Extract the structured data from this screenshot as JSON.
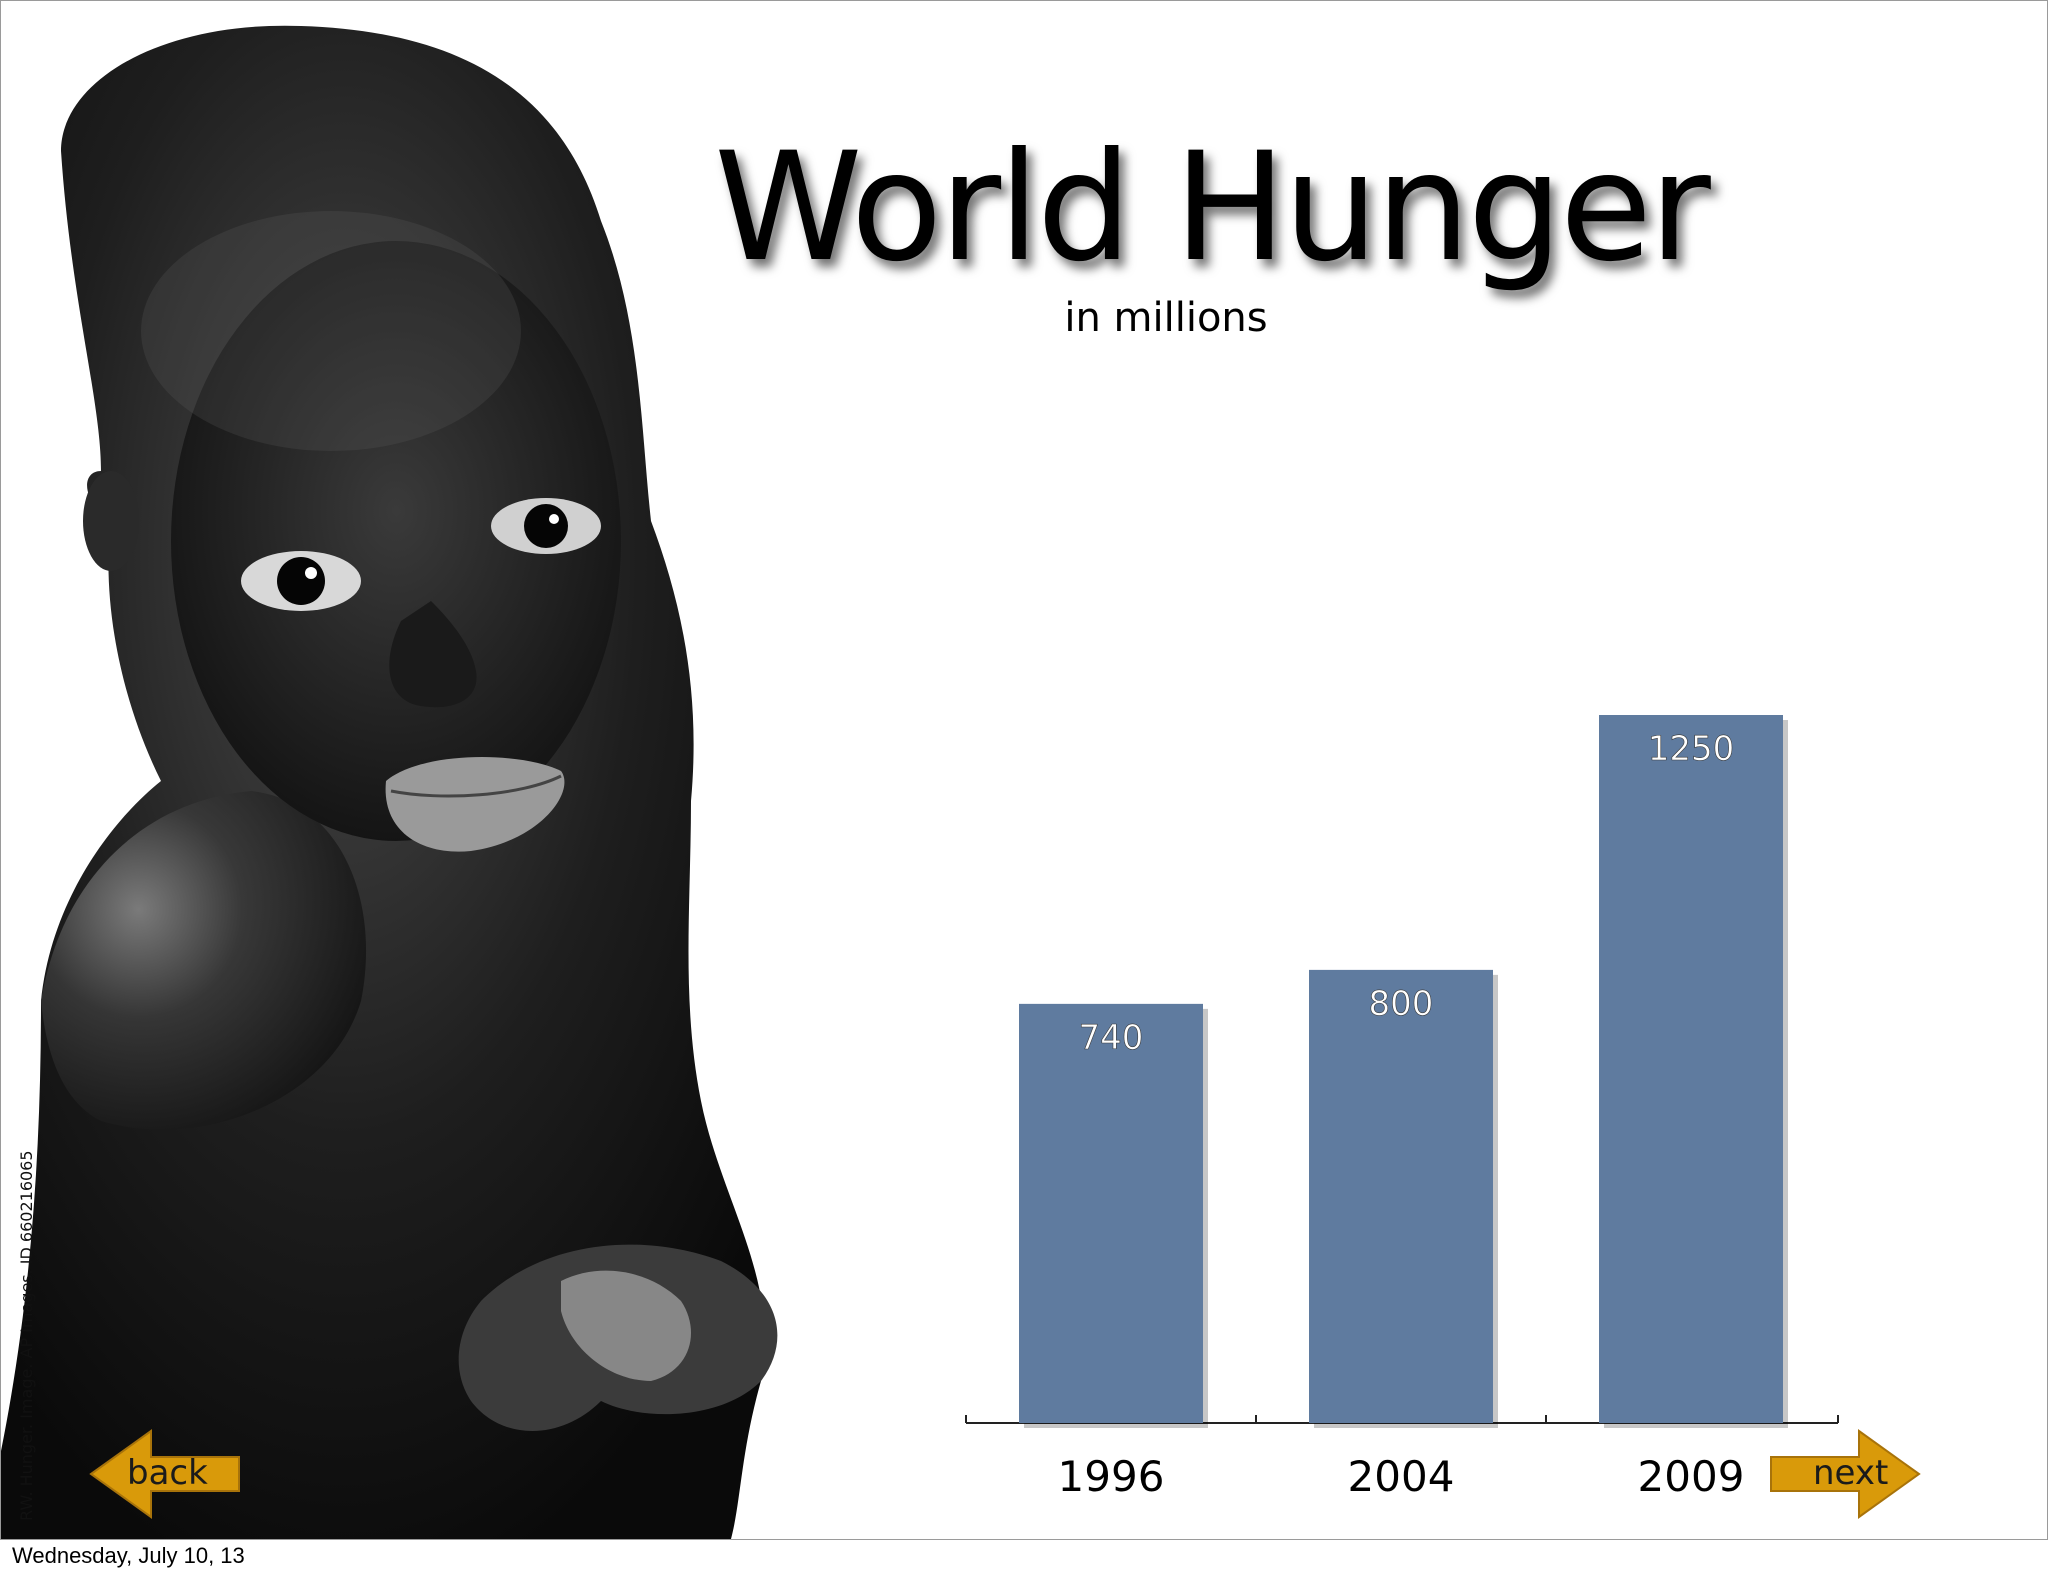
{
  "slide": {
    "title": "World Hunger",
    "subtitle": "in millions",
    "photo_credit": "RW. Hunger. Image. AP Images. ID 660216065",
    "photo_description_icon": "child-photo",
    "nav": {
      "back_label": "back",
      "next_label": "next",
      "arrow_color": "#d99a0a"
    }
  },
  "footer": {
    "date": "Wednesday, July 10, 13"
  },
  "chart_data": {
    "type": "bar",
    "categories": [
      "1996",
      "2004",
      "2009"
    ],
    "values": [
      740,
      800,
      1250
    ],
    "data_labels": [
      "740",
      "800",
      "1250"
    ],
    "title": "World Hunger",
    "subtitle": "in millions",
    "ylim": [
      0,
      1250
    ],
    "bar_color": "#5f7b9f",
    "grid": false,
    "legend": "none"
  }
}
